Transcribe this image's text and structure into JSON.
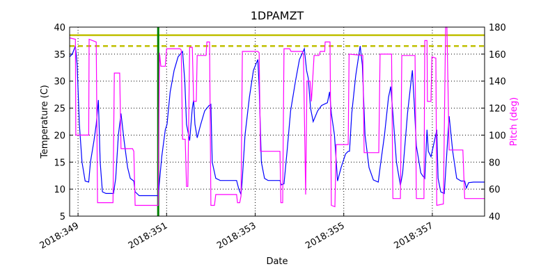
{
  "chart_data": {
    "type": "line",
    "title": "1DPAMZT",
    "xlabel": "Date",
    "ylabel": "Temperature (C)",
    "y2label": "Pitch (deg)",
    "xlim": [
      348.81,
      358.18
    ],
    "xticks": [
      {
        "value": 349,
        "label": "2018:349"
      },
      {
        "value": 351,
        "label": "2018:351"
      },
      {
        "value": 353,
        "label": "2018:353"
      },
      {
        "value": 355,
        "label": "2018:355"
      },
      {
        "value": 357,
        "label": "2018:357"
      }
    ],
    "ylim": [
      5,
      40
    ],
    "yticks": [
      5,
      10,
      15,
      20,
      25,
      30,
      35,
      40
    ],
    "y2lim": [
      40,
      180
    ],
    "y2ticks": [
      40,
      60,
      80,
      100,
      120,
      140,
      160,
      180
    ],
    "y2color": "#ff00ff",
    "grid": true,
    "hlines": [
      {
        "value": 38.5,
        "color": "#bfbf00",
        "style": "solid"
      },
      {
        "value": 36.5,
        "color": "#bfbf00",
        "style": "dashed"
      }
    ],
    "vlines": [
      {
        "value": 350.81,
        "color": "#008000"
      }
    ],
    "series": [
      {
        "color": "#0000ff",
        "axis": "y",
        "x": [
          348.81,
          348.87,
          348.94,
          348.98,
          349.03,
          349.09,
          349.16,
          349.24,
          349.28,
          349.36,
          349.41,
          349.46,
          349.5,
          349.55,
          349.63,
          349.8,
          349.85,
          349.91,
          349.97,
          350.04,
          350.12,
          350.18,
          350.26,
          350.29,
          350.38,
          350.81,
          350.89,
          350.97,
          351.01,
          351.08,
          351.17,
          351.26,
          351.36,
          351.41,
          351.45,
          351.52,
          351.58,
          351.61,
          351.64,
          351.69,
          351.77,
          351.86,
          351.96,
          352.0,
          352.03,
          352.11,
          352.21,
          352.58,
          352.63,
          352.68,
          352.71,
          352.77,
          352.87,
          352.96,
          353.06,
          353.09,
          353.14,
          353.21,
          353.29,
          353.56,
          353.59,
          353.65,
          353.72,
          353.8,
          353.91,
          354.0,
          354.11,
          354.16,
          354.2,
          354.25,
          354.31,
          354.41,
          354.5,
          354.63,
          354.68,
          354.72,
          354.79,
          354.86,
          354.94,
          355.04,
          355.1,
          355.13,
          355.18,
          355.27,
          355.37,
          355.42,
          355.48,
          355.57,
          355.67,
          355.78,
          355.82,
          355.92,
          356.01,
          356.06,
          356.11,
          356.19,
          356.28,
          356.33,
          356.44,
          356.52,
          356.55,
          356.59,
          356.64,
          356.74,
          356.78,
          356.83,
          356.88,
          356.91,
          356.97,
          357.05,
          357.1,
          357.13,
          357.19,
          357.27,
          357.33,
          357.38,
          357.46,
          357.55,
          357.65,
          357.73,
          357.77,
          357.82,
          357.93,
          358.18
        ],
        "values": [
          34.5,
          35,
          36.5,
          33,
          22,
          15,
          11.5,
          11.3,
          15,
          19,
          22,
          26.5,
          15,
          9.5,
          9.2,
          9.2,
          12,
          20,
          24,
          19,
          14,
          12,
          11.5,
          9.5,
          8.8,
          8.8,
          16,
          21,
          22,
          28,
          32,
          34.5,
          35.5,
          30,
          22,
          19,
          25,
          26.5,
          22,
          19.5,
          22,
          24.5,
          25.5,
          25.7,
          15,
          12,
          11.6,
          11.6,
          10,
          9,
          12,
          20,
          27,
          32,
          34,
          29,
          15,
          12,
          11.6,
          11.6,
          10.8,
          11,
          17,
          24.5,
          30,
          34,
          36,
          32,
          30.5,
          25,
          22.5,
          24.5,
          25.5,
          26,
          28,
          24,
          20,
          11.5,
          14,
          16.5,
          17,
          17,
          24,
          31,
          36.5,
          33,
          20,
          14,
          11.7,
          11.3,
          14,
          20,
          27,
          29,
          24,
          15,
          10.7,
          13,
          24,
          30,
          32,
          26,
          18,
          13,
          12.5,
          12,
          21,
          17,
          16,
          19,
          21,
          12,
          9.5,
          9.2,
          17,
          23.5,
          17,
          12,
          11.5,
          11.5,
          10.2,
          11.2,
          11.3,
          11.3
        ]
      },
      {
        "color": "#ff00ff",
        "axis": "y2",
        "x": [
          348.81,
          348.94,
          348.95,
          349.24,
          349.25,
          349.41,
          349.44,
          349.79,
          349.82,
          349.94,
          349.97,
          350.23,
          350.26,
          350.29,
          350.81,
          350.84,
          350.87,
          350.97,
          351.0,
          351.3,
          351.33,
          351.36,
          351.42,
          351.45,
          351.48,
          351.52,
          351.58,
          351.61,
          351.67,
          351.69,
          351.89,
          351.91,
          351.97,
          352.0,
          352.08,
          352.11,
          352.58,
          352.6,
          352.65,
          352.68,
          352.71,
          353.06,
          353.09,
          353.12,
          353.56,
          353.58,
          353.62,
          353.65,
          353.78,
          353.81,
          354.06,
          354.09,
          354.14,
          354.17,
          354.24,
          354.27,
          354.33,
          354.44,
          354.47,
          354.57,
          354.58,
          354.69,
          354.72,
          354.8,
          354.83,
          355.1,
          355.12,
          355.43,
          355.46,
          355.79,
          355.82,
          356.08,
          356.11,
          356.28,
          356.31,
          356.61,
          356.64,
          356.81,
          356.83,
          356.88,
          356.89,
          356.97,
          356.99,
          357.08,
          357.1,
          357.25,
          357.3,
          357.33,
          357.38,
          357.69,
          357.73,
          358.18
        ],
        "values": [
          172,
          171,
          100,
          100,
          171,
          169,
          50,
          50,
          146,
          146,
          90,
          90,
          88,
          48,
          48,
          161,
          151,
          151,
          164,
          164,
          163,
          97,
          97,
          62,
          62,
          165,
          165,
          125,
          125,
          159,
          159,
          169,
          169,
          48,
          48,
          56,
          56,
          50,
          50,
          55,
          162,
          162,
          161,
          88,
          88,
          50,
          50,
          164,
          164,
          162,
          162,
          160,
          56,
          140,
          140,
          125,
          159,
          159,
          162,
          162,
          169,
          169,
          48,
          47,
          93,
          93,
          160,
          159,
          87,
          87,
          160,
          160,
          53,
          53,
          159,
          159,
          53,
          53,
          170,
          170,
          125,
          125,
          158,
          157,
          48,
          49,
          180,
          180,
          89,
          89,
          53,
          53
        ]
      }
    ]
  }
}
